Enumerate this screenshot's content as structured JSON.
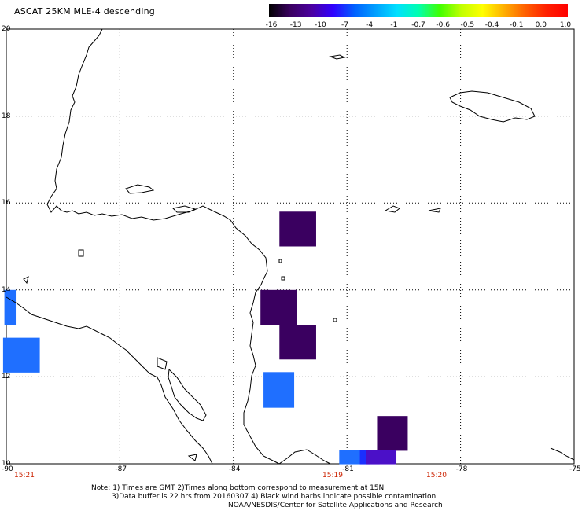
{
  "title": "ASCAT 25KM MLE-4 descending",
  "colorbar": {
    "labels": [
      "-16",
      "-13",
      "-10",
      "-7",
      "-4",
      "-1",
      "-0.7",
      "-0.6",
      "-0.5",
      "-0.4",
      "-0.1",
      "0.0",
      "1.0"
    ],
    "colors": [
      "#000000",
      "#3a0060",
      "#4b00a0",
      "#3000ff",
      "#0060ff",
      "#00a0ff",
      "#00e0ff",
      "#00ffb0",
      "#40ff00",
      "#c0ff00",
      "#ffff00",
      "#ffb000",
      "#ff6000",
      "#ff2000",
      "#ff0000"
    ]
  },
  "lat_labels": [
    "20",
    "18",
    "16",
    "14",
    "12",
    "10"
  ],
  "lon_labels": [
    "-90",
    "-87",
    "-84",
    "-81",
    "-78",
    "-75"
  ],
  "times": [
    "15:21",
    "15:19",
    "15:20"
  ],
  "notes": {
    "line1": "Note: 1) Times are GMT 2)Times along bottom correspond to measurement at 15N",
    "line2": "3)Data buffer is 22 hrs from 20160307 4) Black wind barbs indicate possible contamination",
    "line3": "NOAA/NESDIS/Center for Satellite Applications and Research"
  },
  "data_cells": [
    {
      "lon": -82.3,
      "lat": 15.4,
      "color": "#3a0060"
    },
    {
      "lon": -82.8,
      "lat": 13.6,
      "color": "#3a0060"
    },
    {
      "lon": -82.3,
      "lat": 12.8,
      "color": "#3a0060"
    },
    {
      "lon": -82.8,
      "lat": 11.7,
      "color": "#1f6fff"
    },
    {
      "lon": -79.8,
      "lat": 10.7,
      "color": "#3a0060"
    },
    {
      "lon": -80.8,
      "lat": 10.15,
      "color": "#1f6fff"
    },
    {
      "lon": -80.4,
      "lat": 10.15,
      "color": "#1a2fff"
    },
    {
      "lon": -80.1,
      "lat": 10.15,
      "color": "#4b10c8"
    },
    {
      "lon": -89.6,
      "lat": 12.5,
      "color": "#1f6fff"
    },
    {
      "lon": -89.9,
      "lat": 13.6,
      "color": "#1f6fff"
    }
  ]
}
